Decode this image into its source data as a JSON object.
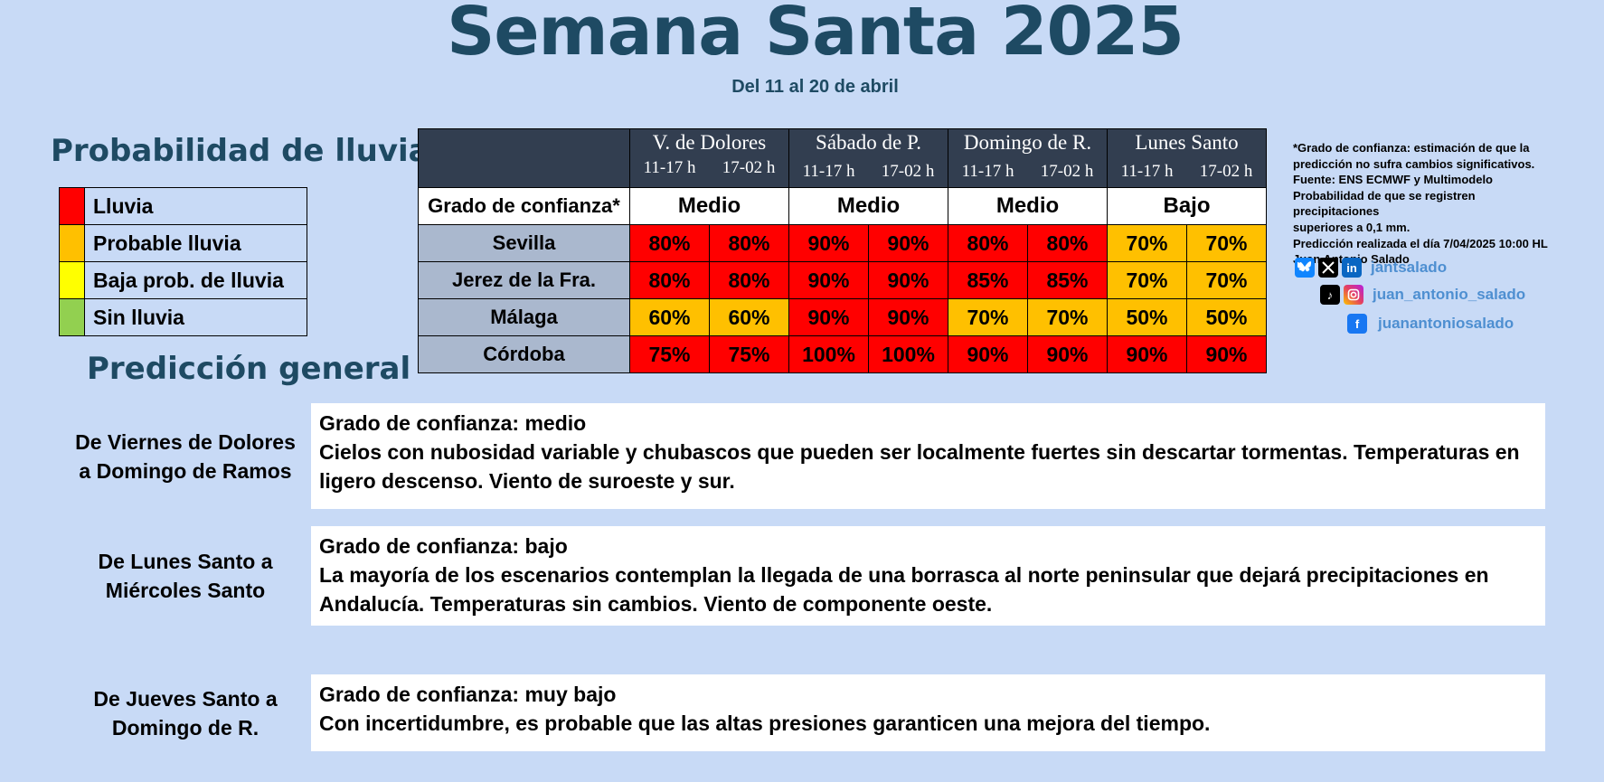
{
  "title": "Semana Santa 2025",
  "subtitle": "Del 11 al 20 de abril",
  "legend": {
    "title": "Probabilidad de lluvia",
    "items": [
      {
        "label": "Lluvia",
        "color": "#ff0000"
      },
      {
        "label": "Probable lluvia",
        "color": "#ffc000"
      },
      {
        "label": "Baja prob. de lluvia",
        "color": "#ffff00"
      },
      {
        "label": "Sin lluvia",
        "color": "#92d050"
      }
    ]
  },
  "table": {
    "days": [
      {
        "name": "V. de Dolores",
        "h1": "11-17 h",
        "h2": "17-02 h"
      },
      {
        "name": "Sábado de P.",
        "h1": "11-17 h",
        "h2": "17-02 h"
      },
      {
        "name": "Domingo de R.",
        "h1": "11-17 h",
        "h2": "17-02 h"
      },
      {
        "name": "Lunes Santo",
        "h1": "11-17 h",
        "h2": "17-02 h"
      }
    ],
    "confidence_label": "Grado de confianza*",
    "confidence": [
      "Medio",
      "Medio",
      "Medio",
      "Bajo"
    ],
    "rows": [
      {
        "city": "Sevilla",
        "values": [
          "80%",
          "80%",
          "90%",
          "90%",
          "80%",
          "80%",
          "70%",
          "70%"
        ],
        "levels": [
          "red",
          "red",
          "red",
          "red",
          "red",
          "red",
          "orange",
          "orange"
        ]
      },
      {
        "city": "Jerez de la Fra.",
        "values": [
          "80%",
          "80%",
          "90%",
          "90%",
          "85%",
          "85%",
          "70%",
          "70%"
        ],
        "levels": [
          "red",
          "red",
          "red",
          "red",
          "red",
          "red",
          "orange",
          "orange"
        ]
      },
      {
        "city": "Málaga",
        "values": [
          "60%",
          "60%",
          "90%",
          "90%",
          "70%",
          "70%",
          "50%",
          "50%"
        ],
        "levels": [
          "orange",
          "orange",
          "red",
          "red",
          "orange",
          "orange",
          "orange",
          "orange"
        ]
      },
      {
        "city": "Córdoba",
        "values": [
          "75%",
          "75%",
          "100%",
          "100%",
          "90%",
          "90%",
          "90%",
          "90%"
        ],
        "levels": [
          "red",
          "red",
          "red",
          "red",
          "red",
          "red",
          "red",
          "red"
        ]
      }
    ]
  },
  "notes": {
    "lines": [
      "*Grado de confianza: estimación de que la",
      "predicción no sufra cambios significativos.",
      "Fuente: ENS ECMWF y  Multimodelo",
      "Probabilidad de que se registren precipitaciones",
      "superiores a 0,1 mm.",
      "Predicción realizada el día 7/04/2025 10:00 HL",
      "Juan Antonio Salado"
    ]
  },
  "social": {
    "handle1": "jantsalado",
    "handle2": "juan_antonio_salado",
    "handle3": "juanantoniosalado"
  },
  "prediction": {
    "title": "Predicción general",
    "periods": [
      {
        "label_1": "De Viernes de Dolores",
        "label_2": "a Domingo de Ramos",
        "confidence": "Grado de confianza: medio",
        "text": "Cielos con nubosidad variable y chubascos que pueden ser localmente fuertes sin descartar tormentas. Temperaturas en ligero descenso. Viento de suroeste y sur."
      },
      {
        "label_1": "De Lunes Santo a",
        "label_2": "Miércoles Santo",
        "confidence": "Grado de confianza: bajo",
        "text": "La mayoría de los escenarios contemplan la llegada de una borrasca al norte peninsular que dejará precipitaciones en Andalucía. Temperaturas sin cambios. Viento de componente oeste."
      },
      {
        "label_1": "De Jueves Santo a",
        "label_2": "Domingo de R.",
        "confidence": "Grado de confianza: muy bajo",
        "text": "Con incertidumbre, es probable que las altas presiones garanticen una mejora del tiempo."
      }
    ]
  }
}
